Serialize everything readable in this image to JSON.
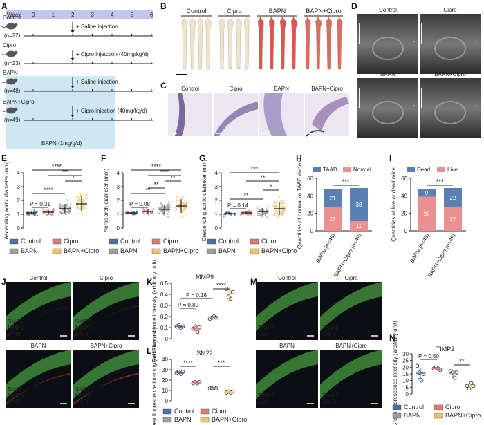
{
  "panel_letters": [
    "A",
    "B",
    "C",
    "D",
    "E",
    "F",
    "G",
    "H",
    "I",
    "J",
    "K",
    "L",
    "M",
    "N"
  ],
  "timeline": {
    "week_label": "Week",
    "weeks": [
      "0",
      "1",
      "2",
      "3",
      "4",
      "5",
      "6"
    ],
    "groups": [
      {
        "name": "Control",
        "n": "(n=22)",
        "treatment": "+ Saline injection"
      },
      {
        "name": "Cipro",
        "n": "(n=23)",
        "treatment": "+ Cipro injetction (40mg/kg/d)"
      },
      {
        "name": "BAPN",
        "n": "(n=48)",
        "treatment": "+ Saline injection"
      },
      {
        "name": "BAPN+Cipro",
        "n": "(n=49)",
        "treatment": "+ Cipro injection (40mg/kg/d)"
      }
    ],
    "bapn_label": "BAPN (1mg/g/d)",
    "colors": {
      "week_bar": "#c5c6ee",
      "bapn_region": "#cfe7f3"
    }
  },
  "panel_b": {
    "labels": [
      "Control",
      "Cipro",
      "BAPN",
      "BAPN+Cipro"
    ]
  },
  "panel_c": {
    "labels": [
      "Control",
      "Cipro",
      "BAPN",
      "BAPN+Cipro"
    ]
  },
  "panel_d": {
    "labels": [
      "Control",
      "Cipro",
      "BAPN",
      "BAPN+Cipro"
    ]
  },
  "panel_j": {
    "labels": [
      "Control",
      "Cipro",
      "BAPN",
      "BAPN+Cipro"
    ],
    "stain": [
      "SM22",
      "MMP9",
      "DAPI"
    ]
  },
  "panel_m": {
    "labels": [
      "Control",
      "Cipro",
      "BAPN",
      "BAPN+Cipro"
    ],
    "stain": [
      "TIMP2",
      "DAPI"
    ]
  },
  "colors": {
    "control": "#4f6fa6",
    "cipro": "#e17b7b",
    "bapn": "#9e9e9e",
    "bapn_cipro": "#f2c36b",
    "taad": "#5b7fb3",
    "normal": "#ec8f8f"
  },
  "legend_groups": [
    "Control",
    "Cipro",
    "BAPN",
    "BAPN+Cipro"
  ],
  "chart_data": [
    {
      "id": "E",
      "type": "scatter",
      "ylabel": "Ascending aortic diameter (mm)",
      "yticks": [
        0,
        1,
        2,
        3,
        4
      ],
      "ylim": [
        0,
        4
      ],
      "categories": [
        "Control",
        "Cipro",
        "BAPN",
        "BAPN+Cipro"
      ],
      "means": [
        1.1,
        1.15,
        1.4,
        1.75
      ],
      "sd": [
        0.15,
        0.18,
        0.35,
        0.55
      ],
      "n_points": [
        22,
        23,
        48,
        49
      ],
      "annotations": [
        {
          "from": 0,
          "to": 1,
          "label": "P = 0.31"
        },
        {
          "from": 0,
          "to": 2,
          "label": "****"
        },
        {
          "from": 2,
          "to": 3,
          "label": "*"
        },
        {
          "from": 1,
          "to": 3,
          "label": "***"
        },
        {
          "from": 0,
          "to": 3,
          "label": "****"
        }
      ]
    },
    {
      "id": "F",
      "type": "scatter",
      "ylabel": "Aortic arch diameter (mm)",
      "yticks": [
        0,
        1,
        2,
        3,
        4
      ],
      "ylim": [
        0,
        4
      ],
      "categories": [
        "Control",
        "Cipro",
        "BAPN",
        "BAPN+Cipro"
      ],
      "means": [
        1.1,
        1.2,
        1.35,
        1.6
      ],
      "sd": [
        0.1,
        0.15,
        0.3,
        0.5
      ],
      "n_points": [
        22,
        23,
        48,
        49
      ],
      "annotations": [
        {
          "from": 0,
          "to": 1,
          "label": "P = 0.08"
        },
        {
          "from": 0,
          "to": 2,
          "label": "**"
        },
        {
          "from": 1,
          "to": 2,
          "label": "**"
        },
        {
          "from": 2,
          "to": 3,
          "label": "**"
        },
        {
          "from": 1,
          "to": 3,
          "label": "****"
        },
        {
          "from": 0,
          "to": 3,
          "label": "****"
        }
      ]
    },
    {
      "id": "G",
      "type": "scatter",
      "ylabel": "Descending aortic diameter (mm)",
      "yticks": [
        0,
        1,
        2,
        3,
        4
      ],
      "ylim": [
        0,
        4
      ],
      "categories": [
        "Control",
        "Cipro",
        "BAPN",
        "BAPN+Cipro"
      ],
      "means": [
        1.05,
        1.1,
        1.2,
        1.4
      ],
      "sd": [
        0.1,
        0.12,
        0.25,
        0.45
      ],
      "n_points": [
        22,
        23,
        48,
        49
      ],
      "annotations": [
        {
          "from": 0,
          "to": 1,
          "label": "P = 0.14"
        },
        {
          "from": 0,
          "to": 2,
          "label": "**"
        },
        {
          "from": 2,
          "to": 3,
          "label": "*"
        },
        {
          "from": 1,
          "to": 3,
          "label": "**"
        },
        {
          "from": 0,
          "to": 3,
          "label": "***"
        }
      ]
    },
    {
      "id": "H",
      "type": "bar",
      "ylabel": "Quantities of normal or TAAD aortas",
      "yticks": [
        0,
        20,
        40,
        60
      ],
      "ylim": [
        0,
        60
      ],
      "categories": [
        "BAPN (n=48)",
        "BAPN+Cipro (n=49)"
      ],
      "series": [
        {
          "name": "Normal",
          "values": [
            27,
            11
          ]
        },
        {
          "name": "TAAD",
          "values": [
            21,
            38
          ]
        }
      ],
      "significance": "***"
    },
    {
      "id": "I",
      "type": "bar",
      "ylabel": "Quantities of live or dead mice",
      "yticks": [
        0,
        20,
        40,
        60
      ],
      "ylim": [
        0,
        60
      ],
      "categories": [
        "BAPN (n=48)",
        "BAPN+Cipro (n=49)"
      ],
      "series": [
        {
          "name": "Live",
          "values": [
            39,
            27
          ]
        },
        {
          "name": "Dead",
          "values": [
            9,
            22
          ]
        }
      ],
      "significance": "***"
    },
    {
      "id": "K",
      "type": "scatter",
      "title": "MMP9",
      "ylabel": "Red Fluorescence intensity (arbitrary unit)",
      "yticks": [
        0,
        0.1,
        0.2,
        0.3,
        0.4,
        0.5
      ],
      "ylim": [
        0,
        0.5
      ],
      "categories": [
        "Control",
        "Cipro",
        "BAPN",
        "BAPN+Cipro"
      ],
      "points": [
        [
          0.11,
          0.12,
          0.1,
          0.11
        ],
        [
          0.09,
          0.11,
          0.06,
          0.1
        ],
        [
          0.18,
          0.19,
          0.2,
          0.19
        ],
        [
          0.45,
          0.38,
          0.36,
          0.42
        ]
      ],
      "annotations": [
        {
          "from": 0,
          "to": 1,
          "label": "P = 0.80"
        },
        {
          "from": 0,
          "to": 2,
          "label": "P = 0.16"
        },
        {
          "from": 2,
          "to": 3,
          "label": "****"
        }
      ]
    },
    {
      "id": "L",
      "type": "scatter",
      "title": "SM22",
      "ylabel": "Green fluorescence intensity (arbitrary unit)",
      "yticks": [
        0,
        10,
        20,
        30,
        40
      ],
      "ylim": [
        0,
        40
      ],
      "categories": [
        "Control",
        "Cipro",
        "BAPN",
        "BAPN+Cipro"
      ],
      "points": [
        [
          27,
          28,
          26,
          28
        ],
        [
          17,
          18,
          17,
          18
        ],
        [
          12,
          12,
          13,
          12
        ],
        [
          8,
          9,
          8,
          9
        ]
      ],
      "annotations": [
        {
          "from": 0,
          "to": 1,
          "label": "****"
        },
        {
          "from": 2,
          "to": 3,
          "label": "***"
        }
      ]
    },
    {
      "id": "N",
      "type": "scatter",
      "title": "TIMP2",
      "ylabel": "Green fluorescence intensity (arbitrary unit)",
      "yticks": [
        0,
        5,
        10,
        15,
        20,
        25,
        30
      ],
      "ylim": [
        0,
        30
      ],
      "categories": [
        "Control",
        "Cipro",
        "BAPN",
        "BAPN+Cipro"
      ],
      "points": [
        [
          21,
          16,
          10,
          15
        ],
        [
          19,
          20,
          19,
          18
        ],
        [
          17,
          16,
          12,
          16
        ],
        [
          6,
          4,
          8,
          6
        ]
      ],
      "annotations": [
        {
          "from": 0,
          "to": 1,
          "label": "P = 0.50"
        },
        {
          "from": 2,
          "to": 3,
          "label": "**"
        }
      ]
    }
  ]
}
